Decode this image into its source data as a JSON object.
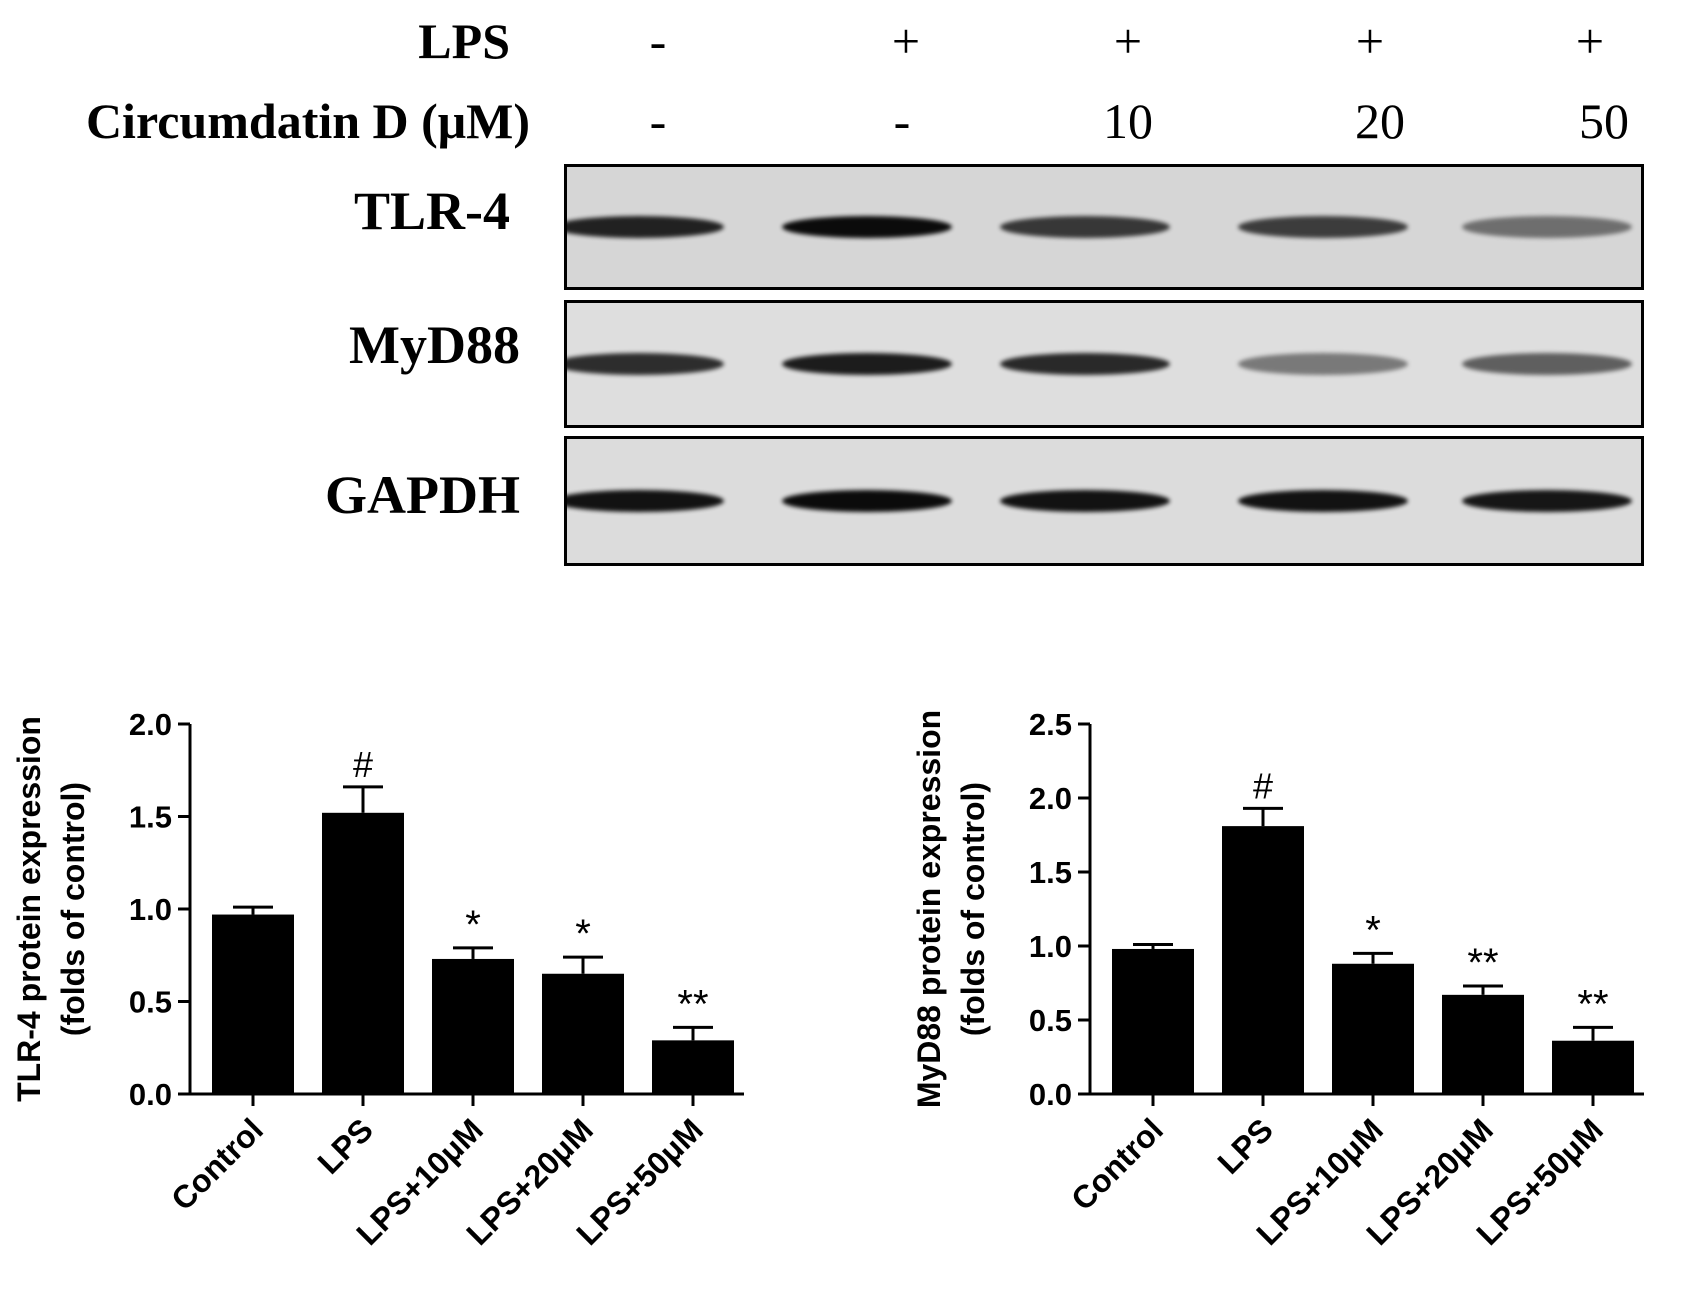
{
  "header": {
    "lps_label": "LPS",
    "circ_label": "Circumdatin D (μM)",
    "lps_values": [
      "-",
      "+",
      "+",
      "+",
      "+"
    ],
    "circ_values": [
      "-",
      "-",
      "10",
      "20",
      "50"
    ]
  },
  "blots": [
    {
      "label": "TLR-4",
      "intensities": [
        0.85,
        0.95,
        0.75,
        0.72,
        0.45
      ]
    },
    {
      "label": "MyD88",
      "intensities": [
        0.8,
        0.88,
        0.82,
        0.4,
        0.55
      ]
    },
    {
      "label": "GAPDH",
      "intensities": [
        0.92,
        0.95,
        0.92,
        0.92,
        0.9
      ]
    }
  ],
  "chart_data": [
    {
      "type": "bar",
      "categories": [
        "Control",
        "LPS",
        "LPS+10μM",
        "LPS+20μM",
        "LPS+50μM"
      ],
      "values": [
        0.97,
        1.52,
        0.73,
        0.65,
        0.29
      ],
      "errors": [
        0.04,
        0.14,
        0.06,
        0.09,
        0.07
      ],
      "annotations": [
        "",
        "#",
        "*",
        "*",
        "**"
      ],
      "ylabel_line1": "TLR-4 protein expression",
      "ylabel_line2": "(folds of control)",
      "ylim": [
        0,
        2.0
      ],
      "yticks": [
        "0.0",
        "0.5",
        "1.0",
        "1.5",
        "2.0"
      ],
      "color": "#000000"
    },
    {
      "type": "bar",
      "categories": [
        "Control",
        "LPS",
        "LPS+10μM",
        "LPS+20μM",
        "LPS+50μM"
      ],
      "values": [
        0.98,
        1.81,
        0.88,
        0.67,
        0.36
      ],
      "errors": [
        0.03,
        0.12,
        0.07,
        0.06,
        0.09
      ],
      "annotations": [
        "",
        "#",
        "*",
        "**",
        "**"
      ],
      "ylabel_line1": "MyD88 protein expression",
      "ylabel_line2": "(folds of control)",
      "ylim": [
        0,
        2.5
      ],
      "yticks": [
        "0.0",
        "0.5",
        "1.0",
        "1.5",
        "2.0",
        "2.5"
      ],
      "color": "#000000"
    }
  ]
}
